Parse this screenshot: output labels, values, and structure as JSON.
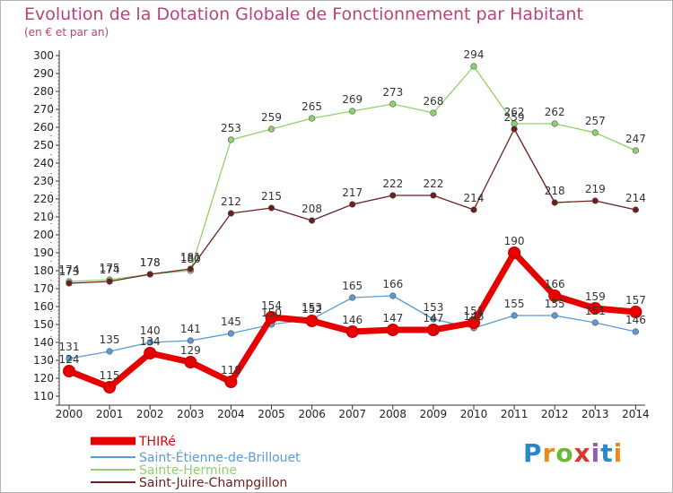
{
  "header": {
    "title": "Evolution de la Dotation Globale de Fonctionnement par Habitant",
    "subtitle": "(en € et par an)"
  },
  "logo": {
    "text": "Proxiti"
  },
  "chart_data": {
    "type": "line",
    "title": "Evolution de la Dotation Globale de Fonctionnement par Habitant",
    "subtitle": "(en € et par an)",
    "xlabel": "",
    "ylabel": "",
    "ylim": [
      110,
      300
    ],
    "ytick_step": 10,
    "grid": false,
    "legend_position": "bottom-left",
    "categories": [
      "2000",
      "2001",
      "2002",
      "2003",
      "2004",
      "2005",
      "2006",
      "2007",
      "2008",
      "2009",
      "2010",
      "2011",
      "2012",
      "2013",
      "2014"
    ],
    "series": [
      {
        "name": "THIRé",
        "color": "#e60000",
        "values": [
          124,
          115,
          134,
          129,
          118,
          154,
          152,
          146,
          147,
          147,
          151,
          190,
          166,
          159,
          157
        ]
      },
      {
        "name": "Saint-Étienne-de-Brillouet",
        "color": "#5b9bd5",
        "values": [
          131,
          135,
          140,
          141,
          145,
          150,
          153,
          165,
          166,
          153,
          148,
          155,
          155,
          151,
          146
        ]
      },
      {
        "name": "Sainte-Hermine",
        "color": "#8fd16a",
        "values": [
          174,
          175,
          178,
          180,
          253,
          259,
          265,
          269,
          273,
          268,
          294,
          262,
          262,
          257,
          247
        ]
      },
      {
        "name": "Saint-Juire-Champgillon",
        "color": "#6b1f1f",
        "values": [
          173,
          174,
          178,
          181,
          212,
          215,
          208,
          217,
          222,
          222,
          214,
          259,
          218,
          219,
          214
        ]
      }
    ]
  }
}
